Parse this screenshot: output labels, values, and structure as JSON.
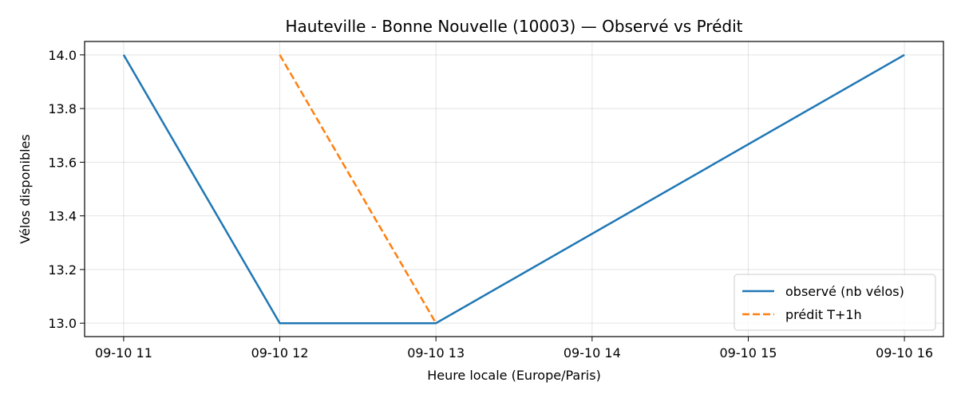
{
  "chart_data": {
    "type": "line",
    "title": "Hauteville - Bonne Nouvelle (10003) — Observé vs Prédit",
    "xlabel": "Heure locale (Europe/Paris)",
    "ylabel": "Vélos disponibles",
    "x_ticks": [
      "09-10 11",
      "09-10 12",
      "09-10 13",
      "09-10 14",
      "09-10 15",
      "09-10 16"
    ],
    "y_ticks": [
      "13.0",
      "13.2",
      "13.4",
      "13.6",
      "13.8",
      "14.0"
    ],
    "y_tick_values": [
      13.0,
      13.2,
      13.4,
      13.6,
      13.8,
      14.0
    ],
    "xlim": [
      "09-10 10:45",
      "09-10 16:15"
    ],
    "ylim": [
      12.95,
      14.05
    ],
    "grid": true,
    "legend_position": "lower right",
    "series": [
      {
        "name": "observé (nb vélos)",
        "color": "#1f77b4",
        "style": "solid",
        "x": [
          "09-10 11",
          "09-10 12",
          "09-10 13",
          "09-10 16"
        ],
        "values": [
          14.0,
          13.0,
          13.0,
          14.0
        ]
      },
      {
        "name": "prédit T+1h",
        "color": "#ff7f0e",
        "style": "dashed",
        "x": [
          "09-10 12",
          "09-10 13"
        ],
        "values": [
          14.0,
          13.0
        ]
      }
    ]
  }
}
